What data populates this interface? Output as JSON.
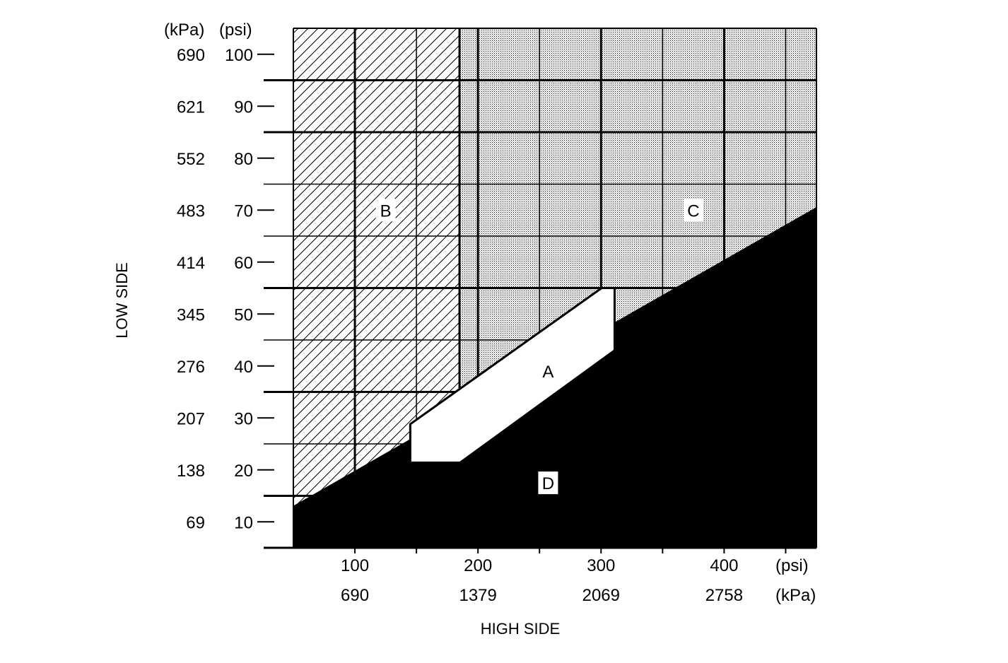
{
  "chart_data": {
    "type": "region-diagram",
    "xlabel": "HIGH SIDE",
    "ylabel": "LOW SIDE",
    "x_unit_primary": "(psi)",
    "x_unit_secondary": "(kPa)",
    "y_unit_primary": "(psi)",
    "y_unit_secondary": "(kPa)",
    "xlim": [
      50,
      475
    ],
    "ylim": [
      5,
      105
    ],
    "x_ticks": [
      {
        "psi": "100",
        "kpa": "690",
        "value": 100
      },
      {
        "psi": "200",
        "kpa": "1379",
        "value": 200
      },
      {
        "psi": "300",
        "kpa": "2069",
        "value": 300
      },
      {
        "psi": "400",
        "kpa": "2758",
        "value": 400
      }
    ],
    "x_minor_ticks": [
      150,
      250,
      350,
      450
    ],
    "y_ticks": [
      {
        "psi": "100",
        "kpa": "690",
        "value": 100
      },
      {
        "psi": "90",
        "kpa": "621",
        "value": 90
      },
      {
        "psi": "80",
        "kpa": "552",
        "value": 80
      },
      {
        "psi": "70",
        "kpa": "483",
        "value": 70
      },
      {
        "psi": "60",
        "kpa": "414",
        "value": 60
      },
      {
        "psi": "50",
        "kpa": "345",
        "value": 50
      },
      {
        "psi": "40",
        "kpa": "276",
        "value": 40
      },
      {
        "psi": "30",
        "kpa": "207",
        "value": 30
      },
      {
        "psi": "20",
        "kpa": "138",
        "value": 20
      },
      {
        "psi": "10",
        "kpa": "69",
        "value": 10
      }
    ],
    "grid": {
      "horizontal": [
        95,
        85,
        75,
        65,
        55,
        45,
        35,
        25,
        15
      ],
      "horizontal_thick": [
        95,
        85,
        55,
        35,
        15
      ],
      "vertical": [
        100,
        150,
        185,
        200,
        250,
        300,
        350,
        400,
        450
      ]
    },
    "regions": {
      "B": {
        "label": "B",
        "fill": "hatched",
        "polygon": [
          [
            50,
            105
          ],
          [
            185,
            105
          ],
          [
            185,
            20
          ],
          [
            50,
            13
          ]
        ],
        "label_at": [
          125,
          70
        ]
      },
      "C": {
        "label": "C",
        "fill": "dotted",
        "polygon": [
          [
            185,
            105
          ],
          [
            475,
            105
          ],
          [
            475,
            70.5
          ],
          [
            185,
            20
          ]
        ],
        "label_at": [
          375,
          70
        ]
      },
      "A": {
        "label": "A",
        "fill": "white",
        "polygon": [
          [
            145,
            28.8
          ],
          [
            300.5,
            55
          ],
          [
            311,
            55
          ],
          [
            311,
            43
          ],
          [
            185.5,
            21.4
          ],
          [
            145,
            21.4
          ]
        ],
        "label_at": [
          257,
          39
        ]
      },
      "D": {
        "label": "D",
        "fill": "black",
        "polygon": [
          [
            50,
            5
          ],
          [
            50,
            13
          ],
          [
            475,
            70.5
          ],
          [
            475,
            5
          ]
        ],
        "label_at": [
          257,
          17.5
        ]
      }
    }
  }
}
